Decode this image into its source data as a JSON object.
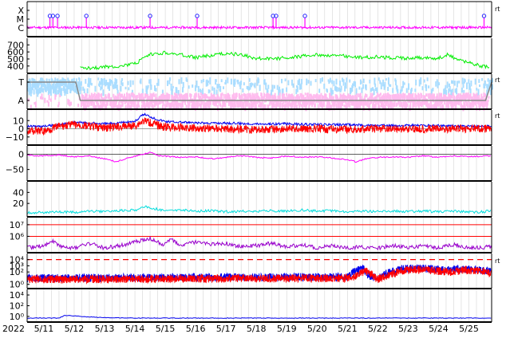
{
  "chart_data": {
    "type": "line",
    "year": "2022",
    "x_ticks": [
      "5/11",
      "5/12",
      "5/13",
      "5/14",
      "5/15",
      "5/16",
      "5/17",
      "5/18",
      "5/19",
      "5/20",
      "5/21",
      "5/22",
      "5/23",
      "5/24",
      "5/25"
    ],
    "x_range_days": [
      10.45,
      25.75
    ],
    "grid": true,
    "colors": {
      "magenta": "#ff00ff",
      "green": "#00ee00",
      "lightblue": "#aaddff",
      "pink": "#ffbbee",
      "blue": "#0000ee",
      "red": "#ff0000",
      "purple": "#9900cc",
      "cyan": "#00dddd",
      "gray": "#888888"
    },
    "panels": [
      {
        "id": "xray_flare",
        "tick_labels": [
          "X",
          "M",
          "C"
        ],
        "side_label": "rt",
        "series": [
          {
            "color": "magenta",
            "baseline_level": "C",
            "spikes_at_days": [
              11.2,
              11.3,
              11.45,
              12.4,
              14.5,
              16.05,
              18.55,
              18.65,
              19.6,
              25.5
            ]
          }
        ]
      },
      {
        "id": "solar_wind_speed",
        "tick_labels": [
          "700",
          "600",
          "500",
          "400"
        ],
        "ylim": [
          330,
          760
        ],
        "series": [
          {
            "color": "green",
            "points": [
              [
                12.2,
                370
              ],
              [
                12.8,
                380
              ],
              [
                13.5,
                400
              ],
              [
                14.0,
                430
              ],
              [
                14.5,
                560
              ],
              [
                15.0,
                590
              ],
              [
                15.5,
                560
              ],
              [
                16.0,
                520
              ],
              [
                16.5,
                550
              ],
              [
                17.0,
                580
              ],
              [
                17.5,
                560
              ],
              [
                18.0,
                510
              ],
              [
                18.5,
                500
              ],
              [
                19.0,
                520
              ],
              [
                19.5,
                540
              ],
              [
                20.0,
                560
              ],
              [
                20.5,
                550
              ],
              [
                21.0,
                540
              ],
              [
                21.5,
                520
              ],
              [
                22.0,
                530
              ],
              [
                22.5,
                515
              ],
              [
                23.0,
                510
              ],
              [
                23.5,
                520
              ],
              [
                24.0,
                510
              ],
              [
                24.3,
                560
              ],
              [
                24.6,
                500
              ],
              [
                25.0,
                450
              ],
              [
                25.4,
                400
              ],
              [
                25.7,
                390
              ]
            ]
          }
        ]
      },
      {
        "id": "imf_direction",
        "tick_labels": [
          "T",
          "A"
        ],
        "side_label": "rt",
        "series": [
          {
            "color": "lightblue",
            "label": "T"
          },
          {
            "color": "pink",
            "label": "A"
          },
          {
            "color": "gray",
            "label": "sector",
            "points": [
              [
                10.45,
                "T"
              ],
              [
                12.05,
                "T"
              ],
              [
                12.2,
                "A"
              ],
              [
                25.55,
                "A"
              ],
              [
                25.75,
                "T"
              ]
            ]
          }
        ]
      },
      {
        "id": "imf_components",
        "tick_labels": [
          "10",
          "0",
          "−10"
        ],
        "ylim": [
          -17,
          20
        ],
        "side_label": "rt",
        "series": [
          {
            "color": "blue",
            "points": [
              [
                10.45,
                3
              ],
              [
                11.0,
                3
              ],
              [
                11.5,
                5
              ],
              [
                12.0,
                8
              ],
              [
                13.0,
                6
              ],
              [
                14.0,
                9
              ],
              [
                14.3,
                18
              ],
              [
                14.7,
                12
              ],
              [
                15.0,
                9
              ],
              [
                16.0,
                7
              ],
              [
                17.0,
                7
              ],
              [
                18.0,
                6
              ],
              [
                19.0,
                6
              ],
              [
                20.0,
                5
              ],
              [
                21.0,
                5
              ],
              [
                22.0,
                4
              ],
              [
                23.0,
                4
              ],
              [
                24.0,
                4
              ],
              [
                25.0,
                3
              ],
              [
                25.75,
                3
              ]
            ]
          },
          {
            "color": "red",
            "points": [
              [
                10.45,
                -2
              ],
              [
                11.0,
                -3
              ],
              [
                11.5,
                3
              ],
              [
                12.0,
                5
              ],
              [
                13.0,
                1
              ],
              [
                14.0,
                4
              ],
              [
                14.3,
                10
              ],
              [
                14.7,
                5
              ],
              [
                15.0,
                2
              ],
              [
                16.0,
                1
              ],
              [
                17.0,
                0
              ],
              [
                18.0,
                -1
              ],
              [
                19.0,
                0
              ],
              [
                20.0,
                0
              ],
              [
                21.0,
                -1
              ],
              [
                22.0,
                0
              ],
              [
                23.0,
                0
              ],
              [
                24.0,
                0
              ],
              [
                25.0,
                0
              ],
              [
                25.75,
                0
              ]
            ]
          }
        ]
      },
      {
        "id": "geomagnetic_index",
        "tick_labels": [
          "0",
          "−50"
        ],
        "ylim": [
          -80,
          20
        ],
        "series": [
          {
            "color": "magenta",
            "points": [
              [
                10.45,
                -3
              ],
              [
                11.0,
                -5
              ],
              [
                11.5,
                -2
              ],
              [
                12.0,
                -8
              ],
              [
                12.5,
                -5
              ],
              [
                13.0,
                -15
              ],
              [
                13.4,
                -25
              ],
              [
                13.8,
                -10
              ],
              [
                14.3,
                0
              ],
              [
                14.5,
                8
              ],
              [
                14.8,
                -5
              ],
              [
                15.5,
                -10
              ],
              [
                16.0,
                -8
              ],
              [
                16.5,
                -15
              ],
              [
                17.0,
                -10
              ],
              [
                17.5,
                -5
              ],
              [
                18.0,
                -10
              ],
              [
                18.5,
                -12
              ],
              [
                19.0,
                -5
              ],
              [
                19.5,
                -10
              ],
              [
                20.0,
                -8
              ],
              [
                20.5,
                -12
              ],
              [
                21.0,
                -18
              ],
              [
                21.3,
                -25
              ],
              [
                21.6,
                -15
              ],
              [
                22.0,
                -10
              ],
              [
                22.5,
                -8
              ],
              [
                23.0,
                -10
              ],
              [
                23.5,
                -5
              ],
              [
                24.0,
                -10
              ],
              [
                24.5,
                -5
              ],
              [
                25.0,
                -8
              ],
              [
                25.75,
                -5
              ]
            ]
          }
        ]
      },
      {
        "id": "density",
        "tick_labels": [
          "40",
          "20"
        ],
        "ylim": [
          0,
          55
        ],
        "series": [
          {
            "color": "cyan",
            "points": [
              [
                10.45,
                3
              ],
              [
                11.0,
                4
              ],
              [
                11.5,
                5
              ],
              [
                12.0,
                4
              ],
              [
                12.5,
                6
              ],
              [
                13.0,
                5
              ],
              [
                13.5,
                7
              ],
              [
                14.0,
                8
              ],
              [
                14.4,
                14
              ],
              [
                14.7,
                10
              ],
              [
                15.0,
                7
              ],
              [
                15.5,
                8
              ],
              [
                16.0,
                6
              ],
              [
                16.5,
                7
              ],
              [
                17.0,
                5
              ],
              [
                17.5,
                6
              ],
              [
                18.0,
                5
              ],
              [
                18.5,
                7
              ],
              [
                19.0,
                6
              ],
              [
                19.5,
                8
              ],
              [
                20.0,
                6
              ],
              [
                20.5,
                7
              ],
              [
                21.0,
                5
              ],
              [
                21.5,
                6
              ],
              [
                22.0,
                5
              ],
              [
                22.5,
                6
              ],
              [
                23.0,
                5
              ],
              [
                23.5,
                6
              ],
              [
                24.0,
                5
              ],
              [
                24.5,
                6
              ],
              [
                25.0,
                4
              ],
              [
                25.5,
                5
              ],
              [
                25.75,
                8
              ]
            ]
          }
        ]
      },
      {
        "id": "electron_flux",
        "tick_labels": [
          "10⁷",
          "10⁶"
        ],
        "log_range": [
          4.8,
          7.4
        ],
        "threshold_lines": [
          7.0,
          6.0
        ],
        "series": [
          {
            "color": "purple",
            "points": [
              [
                10.45,
                5.0
              ],
              [
                11.0,
                5.2
              ],
              [
                11.3,
                5.6
              ],
              [
                11.6,
                5.1
              ],
              [
                12.0,
                5.0
              ],
              [
                12.5,
                5.4
              ],
              [
                13.0,
                5.0
              ],
              [
                13.5,
                5.2
              ],
              [
                14.0,
                5.5
              ],
              [
                14.5,
                5.8
              ],
              [
                14.9,
                5.3
              ],
              [
                15.2,
                5.7
              ],
              [
                15.5,
                5.2
              ],
              [
                16.0,
                5.5
              ],
              [
                16.5,
                5.3
              ],
              [
                17.0,
                5.4
              ],
              [
                17.5,
                5.1
              ],
              [
                18.0,
                5.2
              ],
              [
                18.5,
                5.4
              ],
              [
                19.0,
                5.1
              ],
              [
                19.5,
                5.3
              ],
              [
                20.0,
                5.0
              ],
              [
                20.5,
                5.2
              ],
              [
                21.0,
                5.0
              ],
              [
                21.5,
                5.1
              ],
              [
                22.0,
                5.0
              ],
              [
                22.5,
                5.2
              ],
              [
                23.0,
                5.0
              ],
              [
                23.5,
                5.2
              ],
              [
                24.0,
                5.0
              ],
              [
                24.5,
                5.3
              ],
              [
                25.0,
                5.0
              ],
              [
                25.75,
                5.1
              ]
            ]
          }
        ]
      },
      {
        "id": "proton_flux",
        "tick_labels": [
          "10⁴",
          "10³",
          "10²",
          "10⁰"
        ],
        "log_range": [
          -0.3,
          4.6
        ],
        "threshold_line": 4.0,
        "side_label": "rt",
        "series": [
          {
            "color": "blue",
            "points": [
              [
                10.45,
                1.0
              ],
              [
                21.0,
                1.2
              ],
              [
                21.2,
                2.0
              ],
              [
                21.5,
                2.6
              ],
              [
                21.7,
                1.4
              ],
              [
                22.0,
                1.0
              ],
              [
                22.3,
                1.8
              ],
              [
                22.8,
                2.5
              ],
              [
                23.3,
                2.6
              ],
              [
                23.8,
                2.5
              ],
              [
                24.3,
                2.3
              ],
              [
                24.8,
                2.5
              ],
              [
                25.3,
                2.4
              ],
              [
                25.75,
                2.2
              ]
            ]
          },
          {
            "color": "red",
            "points": [
              [
                10.45,
                0.8
              ],
              [
                21.0,
                1.0
              ],
              [
                21.3,
                1.4
              ],
              [
                21.6,
                2.2
              ],
              [
                22.0,
                0.8
              ],
              [
                22.4,
                1.6
              ],
              [
                22.9,
                2.3
              ],
              [
                23.4,
                2.4
              ],
              [
                23.9,
                2.2
              ],
              [
                24.4,
                2.0
              ],
              [
                24.9,
                2.3
              ],
              [
                25.4,
                2.2
              ],
              [
                25.75,
                1.8
              ]
            ]
          }
        ]
      },
      {
        "id": "high_energy_proton",
        "tick_labels": [
          "10⁴",
          "10²",
          "10⁰"
        ],
        "log_range": [
          -0.6,
          4.6
        ],
        "series": [
          {
            "color": "blue",
            "points": [
              [
                10.45,
                -0.3
              ],
              [
                11.5,
                -0.3
              ],
              [
                11.7,
                0.2
              ],
              [
                12.0,
                0.1
              ],
              [
                12.5,
                -0.1
              ],
              [
                13.0,
                -0.2
              ],
              [
                13.5,
                -0.25
              ],
              [
                14.0,
                -0.3
              ],
              [
                25.75,
                -0.3
              ]
            ]
          }
        ]
      }
    ]
  }
}
